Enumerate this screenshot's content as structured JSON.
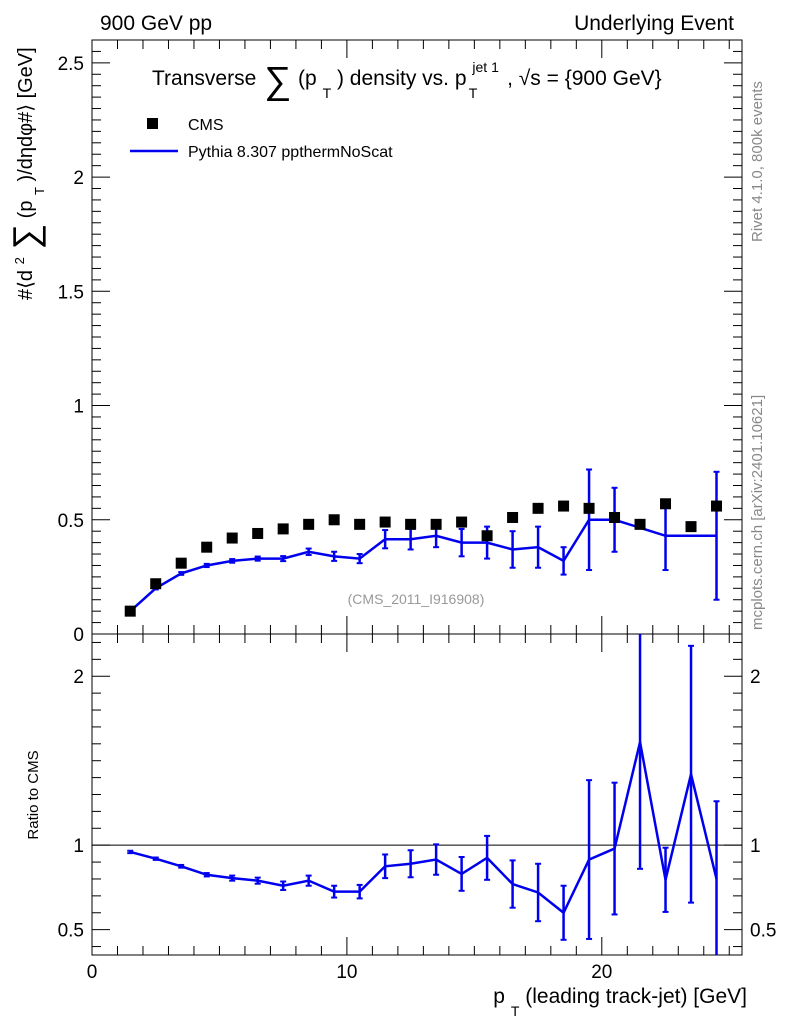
{
  "header": {
    "left": "900 GeV pp",
    "right": "Underlying Event"
  },
  "side_labels": {
    "rivet": "Rivet 4.1.0,  800k events",
    "mcplots": "mcplots.cern.ch [arXiv:2401.10621]"
  },
  "chart_data": {
    "type": "scatter",
    "title": "Transverse ∑(pT) density vs. pT jet 1, √s = {900 GeV}",
    "title_parts": {
      "lead": "Transverse",
      "sum": "∑",
      "p_open": "(p",
      "p_sub": "T",
      "p_close": ") density vs. p",
      "jet_sup": "jet 1",
      "jet_sub": "T",
      "tail": ", √s = {900 GeV}"
    },
    "ylabel_parts": {
      "pre": "#⟨d",
      "sq": "2",
      "sum": "∑",
      "p_open": "(p",
      "p_sub": "T",
      "post": ")/dηdφ#⟩ [GeV]"
    },
    "xlabel_parts": {
      "p": "p",
      "sub": "T",
      "rest": " (leading track-jet) [GeV]"
    },
    "ratio_ylabel": "Ratio to CMS",
    "watermark": "(CMS_2011_I916908)",
    "xlim": [
      0,
      25.5
    ],
    "main_ylim": [
      0,
      2.6
    ],
    "ratio_ylim": [
      0.35,
      2.25
    ],
    "x_ticks": [
      "0",
      "10",
      "20"
    ],
    "main_y_ticks": [
      "0",
      "0.5",
      "1",
      "1.5",
      "2",
      "2.5"
    ],
    "ratio_y_ticks": [
      "0.5",
      "1",
      "2"
    ],
    "legend": [
      {
        "name": "CMS",
        "marker": "square",
        "color": "#000000"
      },
      {
        "name": "Pythia 8.307 ppthermNoScat",
        "marker": "line",
        "color": "#0000ee"
      }
    ],
    "x": [
      1.5,
      2.5,
      3.5,
      4.5,
      5.5,
      6.5,
      7.5,
      8.5,
      9.5,
      10.5,
      11.5,
      12.5,
      13.5,
      14.5,
      15.5,
      16.5,
      17.5,
      18.5,
      19.5,
      20.5,
      21.5,
      22.5,
      23.5,
      24.5
    ],
    "series": [
      {
        "name": "CMS",
        "values": [
          0.1,
          0.22,
          0.31,
          0.38,
          0.42,
          0.44,
          0.46,
          0.48,
          0.5,
          0.48,
          0.49,
          0.48,
          0.48,
          0.49,
          0.43,
          0.51,
          0.55,
          0.56,
          0.55,
          0.51,
          0.48,
          0.57,
          0.47,
          0.56
        ]
      },
      {
        "name": "Pythia 8.307 ppthermNoScat",
        "values": [
          0.1,
          0.2,
          0.265,
          0.3,
          0.32,
          0.33,
          0.33,
          0.36,
          0.34,
          0.33,
          0.415,
          0.415,
          0.43,
          0.4,
          0.4,
          0.37,
          0.38,
          0.32,
          0.5,
          0.5,
          null,
          0.43,
          null,
          0.43
        ],
        "errors": [
          0.005,
          0.005,
          0.006,
          0.007,
          0.008,
          0.009,
          0.011,
          0.014,
          0.02,
          0.02,
          0.04,
          0.045,
          0.05,
          0.06,
          0.07,
          0.08,
          0.09,
          0.06,
          0.22,
          0.14,
          null,
          0.15,
          null,
          0.28
        ]
      }
    ],
    "ratio": {
      "values": [
        0.96,
        0.92,
        0.875,
        0.825,
        0.805,
        0.79,
        0.76,
        0.79,
        0.725,
        0.725,
        0.875,
        0.89,
        0.915,
        0.83,
        0.925,
        0.77,
        0.72,
        0.6,
        0.915,
        0.98,
        1.61,
        0.795,
        1.42,
        0.8
      ],
      "errors": [
        0.007,
        0.007,
        0.008,
        0.01,
        0.015,
        0.018,
        0.025,
        0.03,
        0.035,
        0.04,
        0.07,
        0.08,
        0.09,
        0.1,
        0.13,
        0.14,
        0.17,
        0.16,
        0.47,
        0.39,
        0.75,
        0.19,
        0.76,
        0.46
      ]
    }
  }
}
